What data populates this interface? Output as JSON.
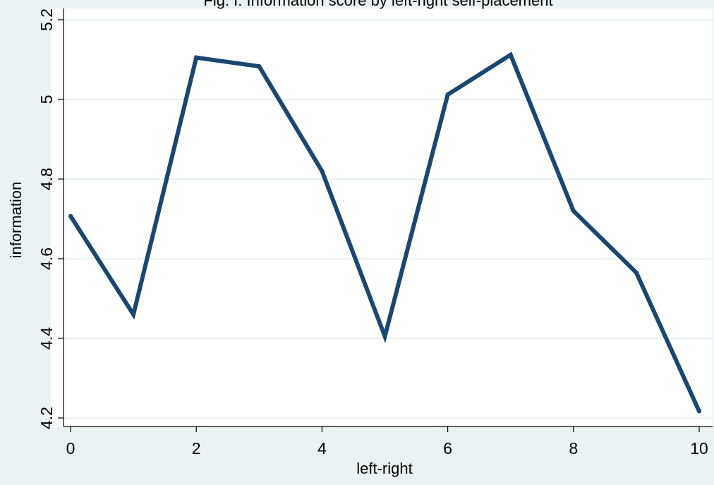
{
  "chart_data": {
    "type": "line",
    "title": "Fig. I: Information score by left-right self-placement",
    "xlabel": "left-right",
    "ylabel": "information",
    "x": [
      0,
      1,
      2,
      3,
      4,
      5,
      6,
      7,
      8,
      9,
      10
    ],
    "series": [
      {
        "values": [
          4.707,
          4.46,
          5.105,
          5.083,
          4.82,
          4.405,
          5.012,
          5.112,
          4.72,
          4.565,
          4.217
        ]
      }
    ],
    "xticks": [
      "0",
      "2",
      "4",
      "6",
      "8",
      "10"
    ],
    "yticks": [
      "4.2",
      "4.4",
      "4.6",
      "4.8",
      "5",
      "5.2"
    ],
    "xlim": [
      0,
      10
    ],
    "ylim": [
      4.2,
      5.2
    ],
    "grid": true,
    "legend": "none",
    "colors": {
      "background": "#eaf2f3",
      "plot_background": "#ffffff",
      "line": "#1a476f",
      "grid": "#eaf2f3",
      "axis": "#000000"
    }
  }
}
